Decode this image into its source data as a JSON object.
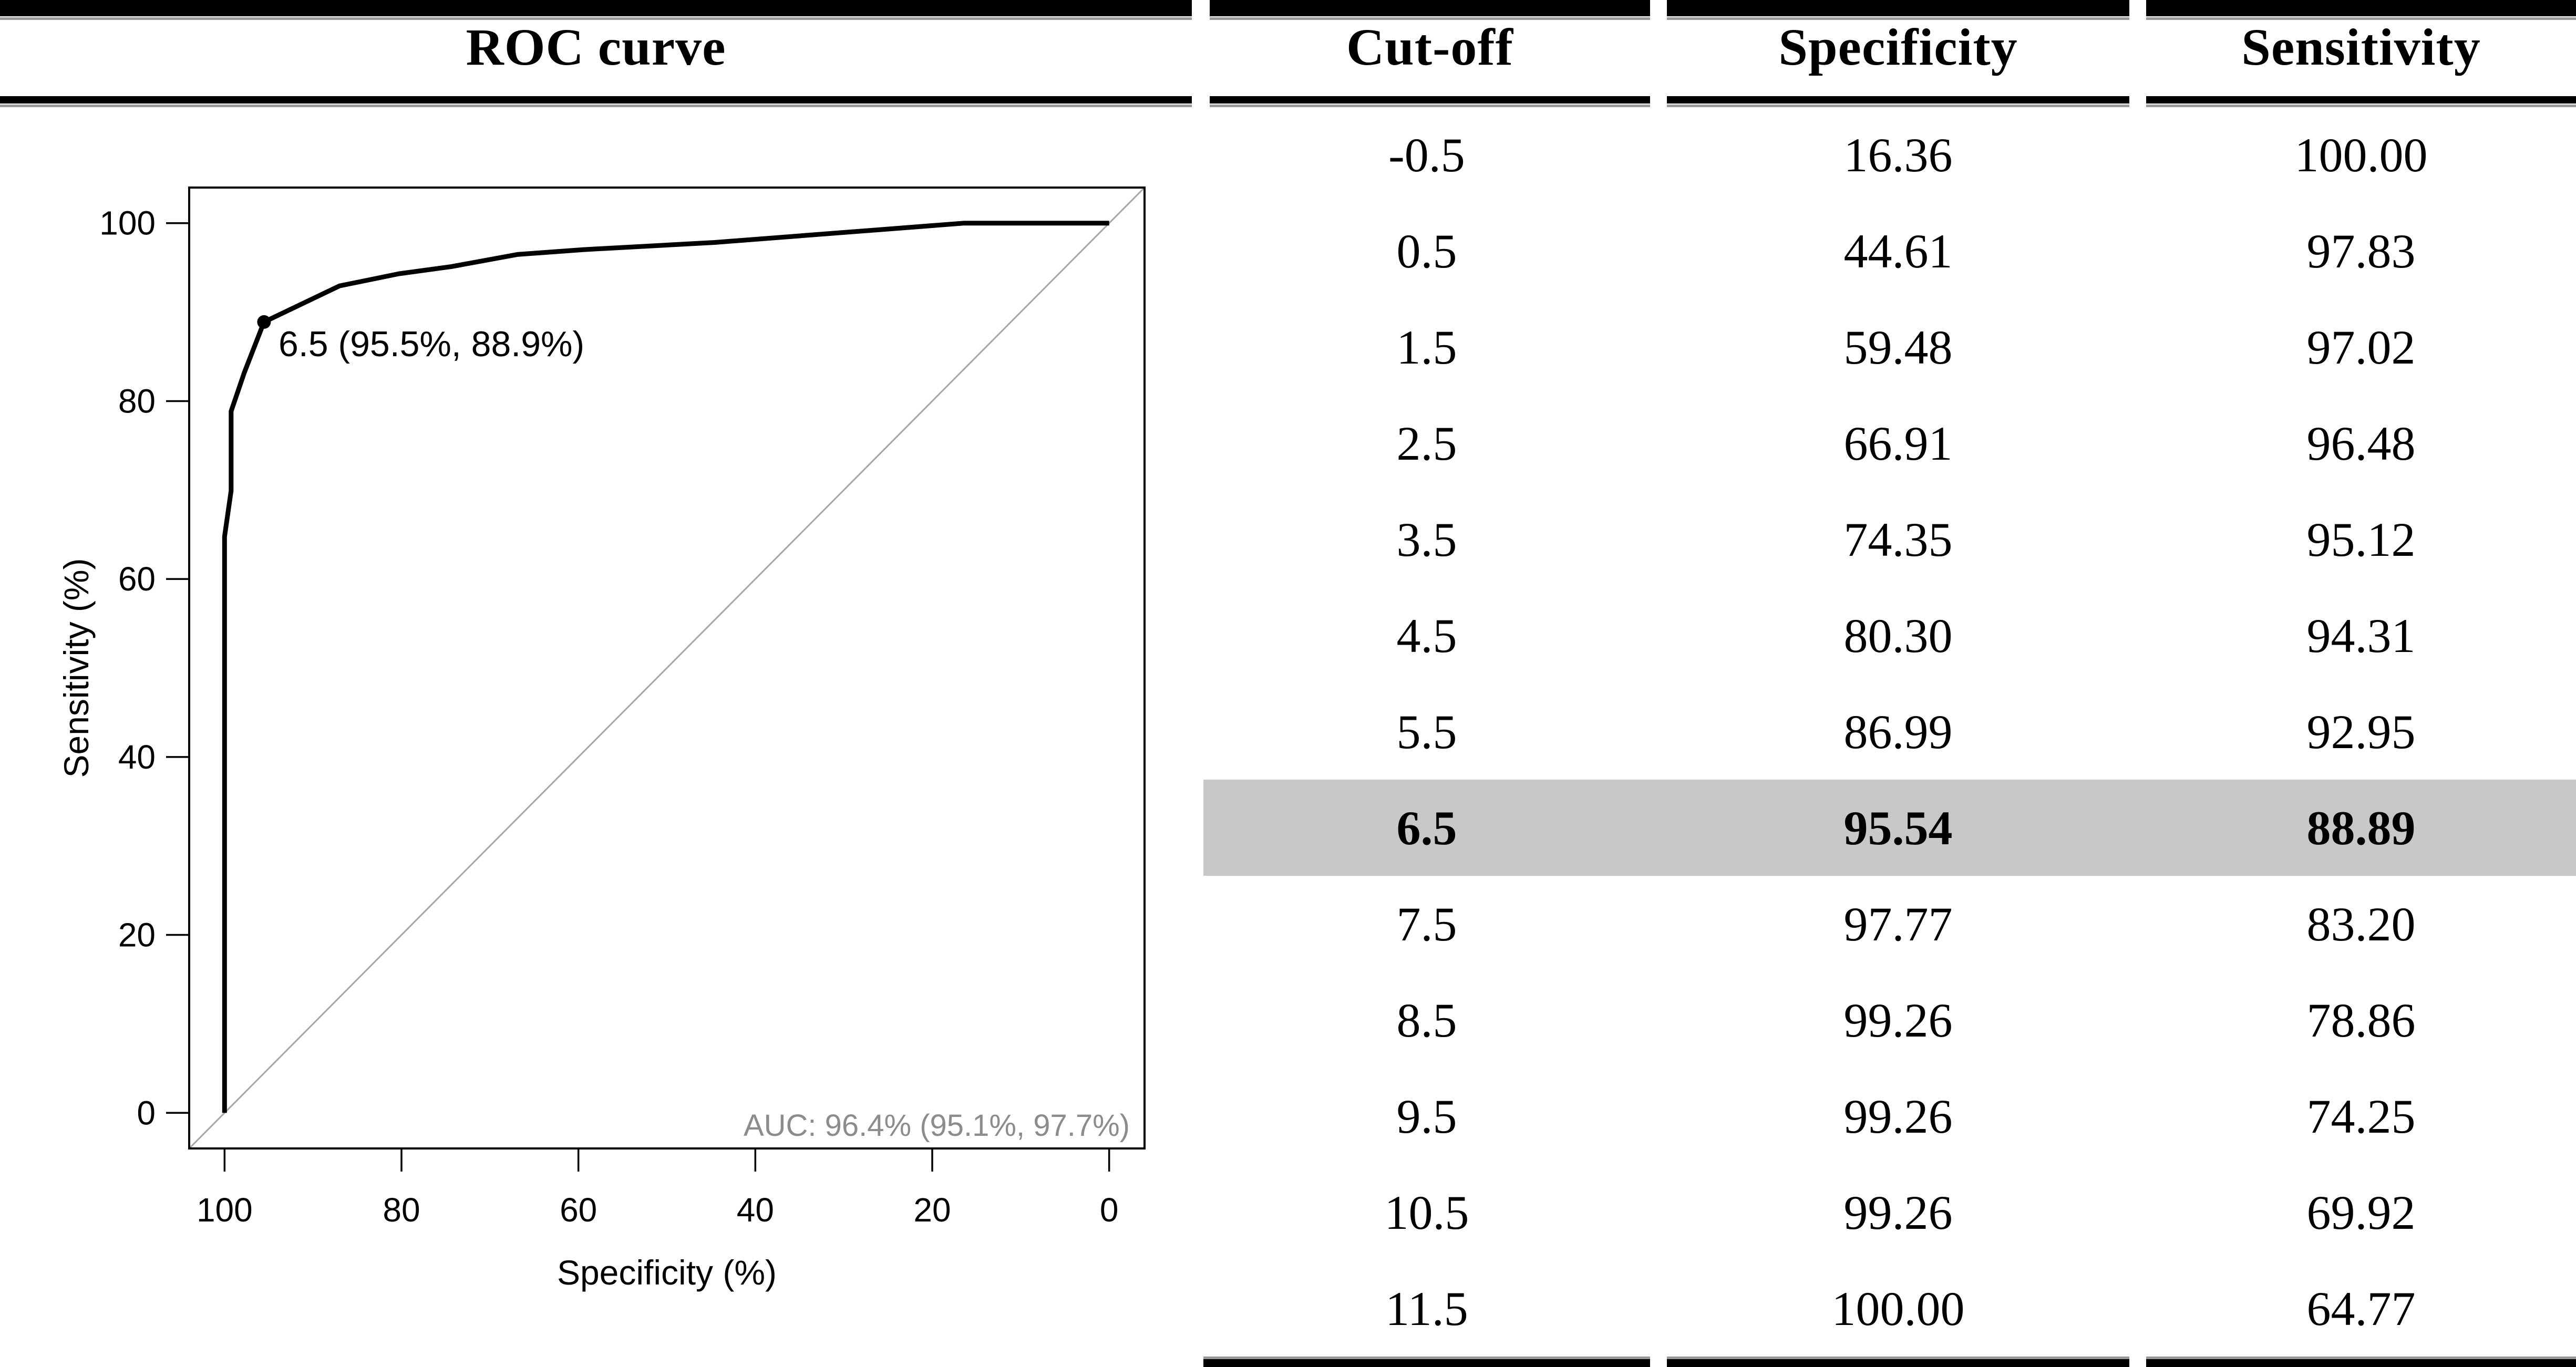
{
  "figure": {
    "plot": {
      "title": "ROC curve",
      "x_axis": {
        "label": "Specificity (%)",
        "ticks": [
          "100",
          "80",
          "60",
          "40",
          "20",
          "0"
        ]
      },
      "y_axis": {
        "label": "Sensitivity (%)",
        "ticks": [
          "0",
          "20",
          "40",
          "60",
          "80",
          "100"
        ]
      },
      "cutoff_annotation": "6.5 (95.5%, 88.9%)",
      "auc_annotation": "AUC: 96.4% (95.1%, 97.7%)"
    },
    "table": {
      "columns": [
        "Cut-off",
        "Specificity",
        "Sensitivity"
      ],
      "highlighted_row_index": 7,
      "rows": [
        [
          "-0.5",
          "16.36",
          "100.00"
        ],
        [
          "0.5",
          "44.61",
          "97.83"
        ],
        [
          "1.5",
          "59.48",
          "97.02"
        ],
        [
          "2.5",
          "66.91",
          "96.48"
        ],
        [
          "3.5",
          "74.35",
          "95.12"
        ],
        [
          "4.5",
          "80.30",
          "94.31"
        ],
        [
          "5.5",
          "86.99",
          "92.95"
        ],
        [
          "6.5",
          "95.54",
          "88.89"
        ],
        [
          "7.5",
          "97.77",
          "83.20"
        ],
        [
          "8.5",
          "99.26",
          "78.86"
        ],
        [
          "9.5",
          "99.26",
          "74.25"
        ],
        [
          "10.5",
          "99.26",
          "69.92"
        ],
        [
          "11.5",
          "100.00",
          "64.77"
        ]
      ]
    },
    "colors": {
      "ink": "#000000",
      "highlight_bg": "#c8c8c8",
      "auc_text": "#8c8c8c",
      "reference_line": "#a6a6a6",
      "rule_shadow": "#9a9a9a"
    }
  },
  "chart_data": {
    "type": "line",
    "title": "ROC curve",
    "xlabel": "Specificity (%)",
    "ylabel": "Sensitivity (%)",
    "xlim": [
      100,
      0
    ],
    "ylim": [
      0,
      100
    ],
    "x_reversed": true,
    "axis_padding_percent": 4,
    "x_ticks": [
      100,
      80,
      60,
      40,
      20,
      0
    ],
    "y_ticks": [
      0,
      20,
      40,
      60,
      80,
      100
    ],
    "grid": false,
    "legend": "none",
    "reference_diagonal": true,
    "series": [
      {
        "name": "ROC curve",
        "points_spec_sens": [
          [
            100,
            0
          ],
          [
            100,
            64.77
          ],
          [
            99.26,
            69.92
          ],
          [
            99.26,
            74.25
          ],
          [
            99.26,
            78.86
          ],
          [
            97.77,
            83.2
          ],
          [
            95.54,
            88.89
          ],
          [
            86.99,
            92.95
          ],
          [
            80.3,
            94.31
          ],
          [
            74.35,
            95.12
          ],
          [
            66.91,
            96.48
          ],
          [
            59.48,
            97.02
          ],
          [
            44.61,
            97.83
          ],
          [
            16.36,
            100
          ],
          [
            0,
            100
          ]
        ]
      }
    ],
    "optimal_point": {
      "cutoff": 6.5,
      "specificity": 95.54,
      "sensitivity": 88.89,
      "label": "6.5 (95.5%, 88.9%)"
    },
    "auc": {
      "label": "AUC: 96.4% (95.1%, 97.7%)",
      "value_percent": 96.4,
      "ci_low_percent": 95.1,
      "ci_high_percent": 97.7
    }
  }
}
